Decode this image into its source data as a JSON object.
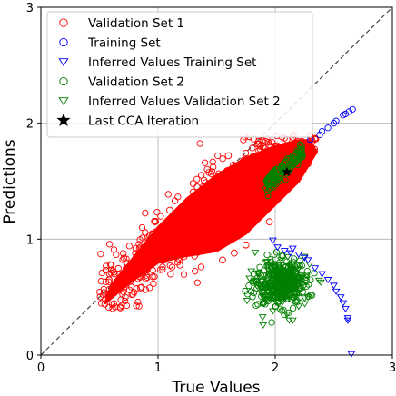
{
  "chart_data": {
    "type": "scatter",
    "xlabel": "True Values",
    "ylabel": "Predictions",
    "xlim": [
      0,
      3
    ],
    "ylim": [
      0,
      3
    ],
    "x_ticks": [
      "0",
      "1",
      "2",
      "3"
    ],
    "y_ticks": [
      "0",
      "1",
      "2",
      "3"
    ],
    "grid": true,
    "legend_position": "top-left",
    "reference_line": {
      "style": "dashed",
      "color": "#444444",
      "from": [
        0,
        0
      ],
      "to": [
        3,
        3
      ]
    },
    "series": [
      {
        "name": "Validation Set 1",
        "marker": "circle-open",
        "color": "#ff0000",
        "fill": "dense",
        "cloud_outline": [
          [
            0.55,
            0.45
          ],
          [
            0.75,
            0.62
          ],
          [
            1.0,
            0.8
          ],
          [
            1.2,
            0.85
          ],
          [
            1.5,
            0.9
          ],
          [
            1.75,
            1.05
          ],
          [
            2.0,
            1.3
          ],
          [
            2.2,
            1.5
          ],
          [
            2.35,
            1.75
          ],
          [
            2.3,
            1.85
          ],
          [
            2.2,
            1.85
          ],
          [
            2.0,
            1.8
          ],
          [
            1.75,
            1.7
          ],
          [
            1.5,
            1.55
          ],
          [
            1.25,
            1.35
          ],
          [
            1.0,
            1.1
          ],
          [
            0.8,
            0.85
          ],
          [
            0.6,
            0.6
          ]
        ],
        "points": [
          [
            0.72,
            0.5
          ],
          [
            0.85,
            0.58
          ],
          [
            1.55,
            0.82
          ],
          [
            1.75,
            0.95
          ],
          [
            1.95,
            1.15
          ],
          [
            0.65,
            0.62
          ],
          [
            0.9,
            0.95
          ],
          [
            1.1,
            1.25
          ],
          [
            1.3,
            1.48
          ],
          [
            1.6,
            1.72
          ],
          [
            1.85,
            1.82
          ],
          [
            2.1,
            1.86
          ],
          [
            2.25,
            1.82
          ],
          [
            2.3,
            1.78
          ],
          [
            1.65,
            0.88
          ]
        ]
      },
      {
        "name": "Training Set",
        "marker": "circle-open",
        "color": "#0000ff",
        "points": [
          [
            2.3,
            1.86
          ],
          [
            2.38,
            1.9
          ],
          [
            2.45,
            1.96
          ],
          [
            2.52,
            2.02
          ],
          [
            2.58,
            2.07
          ],
          [
            2.63,
            2.1
          ],
          [
            2.66,
            2.12
          ],
          [
            2.4,
            1.93
          ],
          [
            2.5,
            2.0
          ],
          [
            2.6,
            2.08
          ]
        ]
      },
      {
        "name": "Inferred Values Training Set",
        "marker": "triangle-down-open",
        "color": "#0000ff",
        "points": [
          [
            1.98,
            0.99
          ],
          [
            2.02,
            0.93
          ],
          [
            2.08,
            0.9
          ],
          [
            2.13,
            0.88
          ],
          [
            2.2,
            0.87
          ],
          [
            2.28,
            0.82
          ],
          [
            2.34,
            0.75
          ],
          [
            2.4,
            0.7
          ],
          [
            2.45,
            0.65
          ],
          [
            2.5,
            0.6
          ],
          [
            2.52,
            0.55
          ],
          [
            2.56,
            0.5
          ],
          [
            2.58,
            0.45
          ],
          [
            2.6,
            0.4
          ],
          [
            2.62,
            0.32
          ],
          [
            2.62,
            0.3
          ],
          [
            2.15,
            0.92
          ],
          [
            2.25,
            0.84
          ],
          [
            2.65,
            0.01
          ]
        ]
      },
      {
        "name": "Validation Set 2",
        "marker": "circle-open",
        "color": "#008000",
        "cloud_outline": [
          [
            1.95,
            1.45
          ],
          [
            2.05,
            1.55
          ],
          [
            2.15,
            1.62
          ],
          [
            2.25,
            1.72
          ],
          [
            2.2,
            1.78
          ],
          [
            2.1,
            1.7
          ],
          [
            1.98,
            1.6
          ],
          [
            1.9,
            1.5
          ]
        ],
        "cluster_2": {
          "center": [
            2.05,
            0.62
          ],
          "spread": [
            0.13,
            0.12
          ]
        },
        "points": [
          [
            2.05,
            0.62
          ],
          [
            1.95,
            0.55
          ],
          [
            2.12,
            0.7
          ],
          [
            2.0,
            0.75
          ],
          [
            2.15,
            0.5
          ]
        ]
      },
      {
        "name": "Inferred Values Validation Set 2",
        "marker": "triangle-down-open",
        "color": "#008000",
        "points": [
          [
            1.85,
            0.7
          ],
          [
            1.9,
            0.45
          ],
          [
            1.98,
            0.38
          ],
          [
            2.1,
            0.35
          ],
          [
            2.2,
            0.42
          ],
          [
            2.25,
            0.6
          ],
          [
            2.2,
            0.78
          ],
          [
            2.05,
            0.82
          ],
          [
            1.92,
            0.8
          ],
          [
            2.28,
            0.5
          ],
          [
            1.88,
            0.58
          ],
          [
            2.15,
            0.3
          ]
        ]
      },
      {
        "name": "Last CCA Iteration",
        "marker": "star",
        "color": "#000000",
        "points": [
          [
            2.1,
            1.58
          ]
        ]
      }
    ]
  }
}
